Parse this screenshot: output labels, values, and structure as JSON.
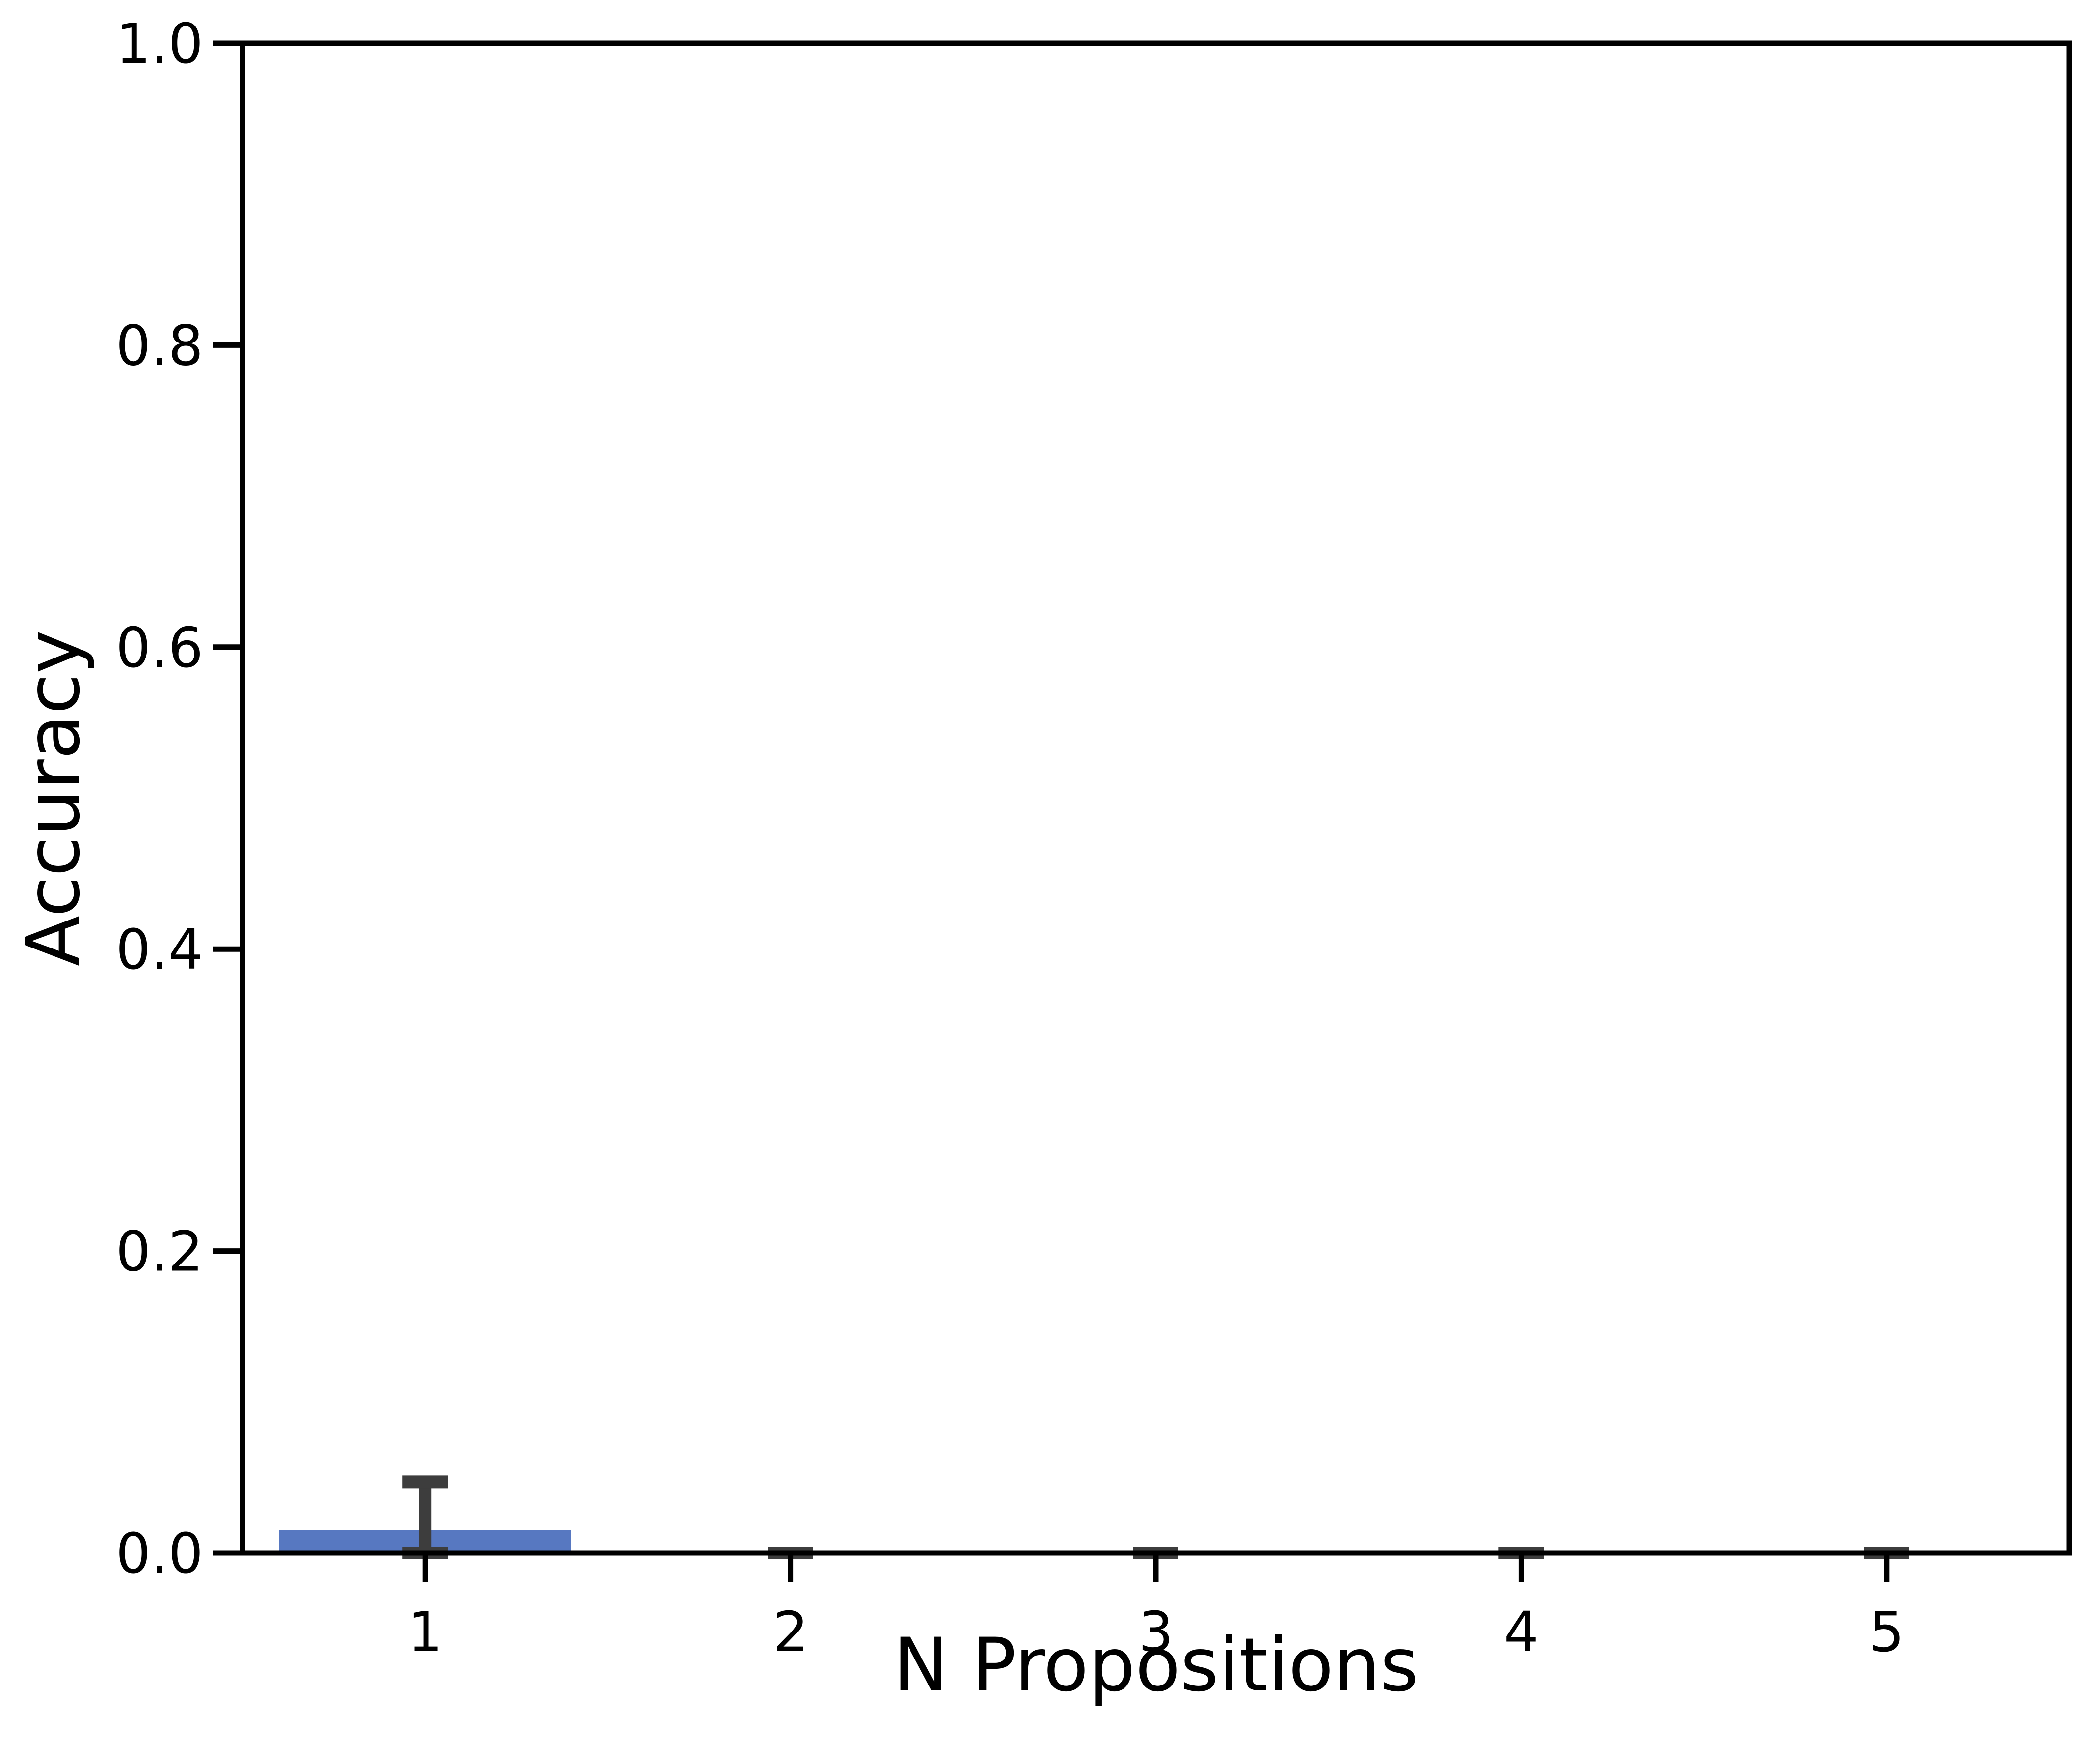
{
  "chart_data": {
    "type": "bar",
    "title": "",
    "xlabel": "N Propositions",
    "ylabel": "Accuracy",
    "categories": [
      "1",
      "2",
      "3",
      "4",
      "5"
    ],
    "values": [
      0.015,
      0.0,
      0.0,
      0.0,
      0.0
    ],
    "error_low": [
      0.0,
      0.0,
      0.0,
      0.0,
      0.0
    ],
    "error_high": [
      0.047,
      0.0,
      0.0,
      0.0,
      0.0
    ],
    "ylim": [
      0,
      1.0
    ],
    "yticks": [
      0.0,
      0.2,
      0.4,
      0.6,
      0.8,
      1.0
    ],
    "ytick_labels": [
      "0.0",
      "0.2",
      "0.4",
      "0.6",
      "0.8",
      "1.0"
    ],
    "grid": false,
    "bar_color": "#5778c1",
    "error_color": "#3d3d3d",
    "axis_color": "#000000"
  }
}
